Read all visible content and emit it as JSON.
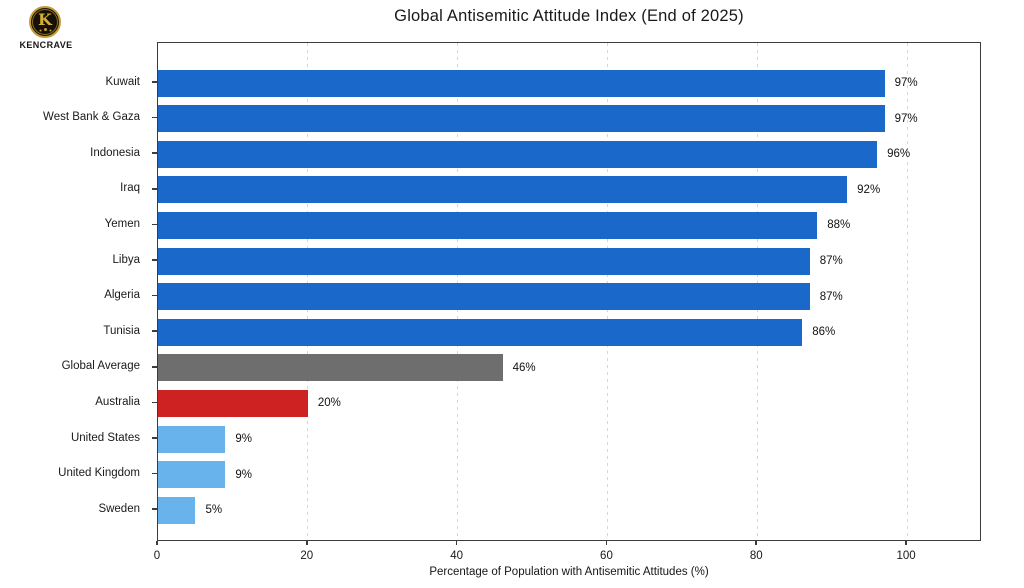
{
  "brand": {
    "name": "KENCRAVE",
    "monogram": "K"
  },
  "chart_data": {
    "type": "bar",
    "orientation": "horizontal",
    "title": "Global Antisemitic Attitude Index (End of 2025)",
    "xlabel": "Percentage of Population with Antisemitic Attitudes (%)",
    "categories": [
      "Kuwait",
      "West Bank & Gaza",
      "Indonesia",
      "Iraq",
      "Yemen",
      "Libya",
      "Algeria",
      "Tunisia",
      "Global Average",
      "Australia",
      "United States",
      "United Kingdom",
      "Sweden"
    ],
    "values": [
      97,
      97,
      96,
      92,
      88,
      87,
      87,
      86,
      46,
      20,
      9,
      9,
      5
    ],
    "value_labels": [
      "97%",
      "97%",
      "96%",
      "92%",
      "88%",
      "87%",
      "87%",
      "86%",
      "46%",
      "20%",
      "9%",
      "9%",
      "5%"
    ],
    "bar_colors": [
      "#1A68C9",
      "#1A68C9",
      "#1A68C9",
      "#1A68C9",
      "#1A68C9",
      "#1A68C9",
      "#1A68C9",
      "#1A68C9",
      "#6E6E6E",
      "#CE2222",
      "#68B3EB",
      "#68B3EB",
      "#68B3EB"
    ],
    "colors": {
      "primary_blue": "#1A68C9",
      "average_gray": "#6E6E6E",
      "highlight_red": "#CE2222",
      "light_blue": "#68B3EB"
    },
    "xlim": [
      0,
      110
    ],
    "xticks": [
      0,
      20,
      40,
      60,
      80,
      100
    ],
    "grid": "vertical-dashed",
    "legend": "none"
  }
}
